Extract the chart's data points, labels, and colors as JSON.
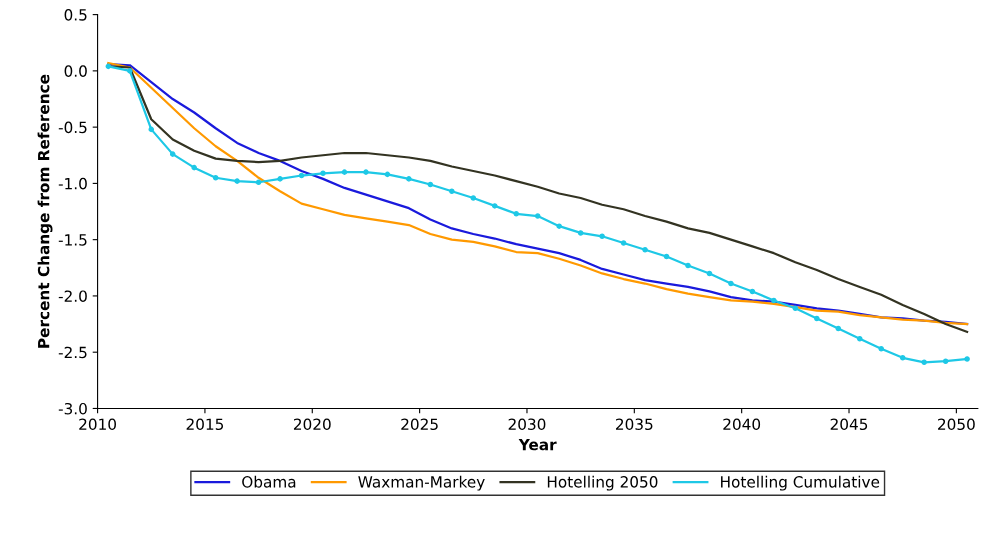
{
  "chart_data": {
    "type": "line",
    "xlabel": "Year",
    "ylabel": "Percent Change from Reference",
    "x": [
      2010.5,
      2011.5,
      2012.5,
      2013.5,
      2014.5,
      2015.5,
      2016.5,
      2017.5,
      2018.5,
      2019.5,
      2020.5,
      2021.5,
      2022.5,
      2023.5,
      2024.5,
      2025.5,
      2026.5,
      2027.5,
      2028.5,
      2029.5,
      2030.5,
      2031.5,
      2032.5,
      2033.5,
      2034.5,
      2035.5,
      2036.5,
      2037.5,
      2038.5,
      2039.5,
      2040.5,
      2041.5,
      2042.5,
      2043.5,
      2044.5,
      2045.5,
      2046.5,
      2047.5,
      2048.5,
      2049.5,
      2050.5
    ],
    "xlim": [
      2010,
      2051
    ],
    "xticks": [
      2010,
      2015,
      2020,
      2025,
      2030,
      2035,
      2040,
      2045,
      2050
    ],
    "ylim": [
      -3.0,
      0.5
    ],
    "yticks": [
      {
        "value": -3.0,
        "label": "-3.0"
      },
      {
        "value": -2.5,
        "label": "-2.5"
      },
      {
        "value": -2.0,
        "label": "-2.0"
      },
      {
        "value": -1.5,
        "label": "-1.5"
      },
      {
        "value": -1.0,
        "label": "-1.0"
      },
      {
        "value": -0.5,
        "label": "-0.5"
      },
      {
        "value": 0.0,
        "label": "0.0"
      },
      {
        "value": 0.5,
        "label": "0.5"
      }
    ],
    "grid": false,
    "legend": "bottom",
    "series": [
      {
        "name": "Obama",
        "color": "#1a1adc",
        "marker": "none",
        "values": [
          0.06,
          0.05,
          -0.1,
          -0.25,
          -0.37,
          -0.51,
          -0.64,
          -0.73,
          -0.8,
          -0.89,
          -0.96,
          -1.04,
          -1.1,
          -1.16,
          -1.22,
          -1.32,
          -1.4,
          -1.45,
          -1.49,
          -1.54,
          -1.58,
          -1.62,
          -1.68,
          -1.76,
          -1.81,
          -1.86,
          -1.89,
          -1.92,
          -1.96,
          -2.01,
          -2.04,
          -2.05,
          -2.08,
          -2.11,
          -2.13,
          -2.16,
          -2.19,
          -2.2,
          -2.22,
          -2.23,
          -2.25
        ]
      },
      {
        "name": "Waxman-Markey",
        "color": "#ff9900",
        "marker": "none",
        "values": [
          0.07,
          0.03,
          -0.15,
          -0.33,
          -0.51,
          -0.67,
          -0.8,
          -0.95,
          -1.07,
          -1.18,
          -1.23,
          -1.28,
          -1.31,
          -1.34,
          -1.37,
          -1.45,
          -1.5,
          -1.52,
          -1.56,
          -1.61,
          -1.62,
          -1.67,
          -1.73,
          -1.8,
          -1.85,
          -1.89,
          -1.94,
          -1.98,
          -2.01,
          -2.04,
          -2.05,
          -2.07,
          -2.1,
          -2.13,
          -2.14,
          -2.17,
          -2.19,
          -2.21,
          -2.22,
          -2.24,
          -2.25
        ]
      },
      {
        "name": "Hotelling 2050",
        "color": "#333322",
        "marker": "none",
        "values": [
          0.04,
          0.03,
          -0.43,
          -0.61,
          -0.71,
          -0.78,
          -0.8,
          -0.81,
          -0.8,
          -0.77,
          -0.75,
          -0.73,
          -0.73,
          -0.75,
          -0.77,
          -0.8,
          -0.85,
          -0.89,
          -0.93,
          -0.98,
          -1.03,
          -1.09,
          -1.13,
          -1.19,
          -1.23,
          -1.29,
          -1.34,
          -1.4,
          -1.44,
          -1.5,
          -1.56,
          -1.62,
          -1.7,
          -1.77,
          -1.85,
          -1.92,
          -1.99,
          -2.08,
          -2.16,
          -2.25,
          -2.32
        ]
      },
      {
        "name": "Hotelling Cumulative",
        "color": "#1ec8e6",
        "marker": "circle",
        "values": [
          0.04,
          0.0,
          -0.52,
          -0.74,
          -0.86,
          -0.95,
          -0.98,
          -0.99,
          -0.96,
          -0.93,
          -0.91,
          -0.9,
          -0.9,
          -0.92,
          -0.96,
          -1.01,
          -1.07,
          -1.13,
          -1.2,
          -1.27,
          -1.29,
          -1.38,
          -1.44,
          -1.47,
          -1.53,
          -1.59,
          -1.65,
          -1.73,
          -1.8,
          -1.89,
          -1.96,
          -2.04,
          -2.11,
          -2.2,
          -2.29,
          -2.38,
          -2.47,
          -2.55,
          -2.59,
          -2.58,
          -2.56
        ]
      }
    ]
  }
}
